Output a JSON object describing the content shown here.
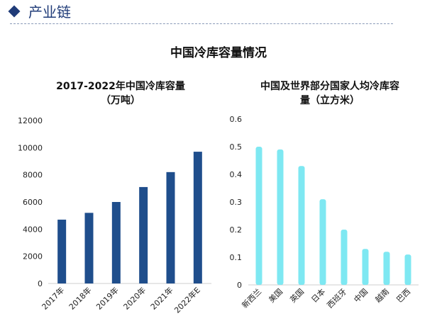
{
  "header": {
    "section_title": "产业链",
    "accent_color": "#1f3b78",
    "icon": "diamond-icon"
  },
  "main_title": "中国冷库容量情况",
  "chart_data": [
    {
      "type": "bar",
      "title_line1": "2017-2022年中国冷库容量",
      "title_line2": "（万吨）",
      "categories": [
        "2017年",
        "2018年",
        "2019年",
        "2020年",
        "2021年",
        "2022年E"
      ],
      "values": [
        4700,
        5200,
        6000,
        7100,
        8200,
        9700
      ],
      "ylim": [
        0,
        12000
      ],
      "yticks": [
        "0",
        "2000",
        "4000",
        "6000",
        "8000",
        "10000",
        "12000"
      ],
      "grid": false,
      "color": "#1f4e8c"
    },
    {
      "type": "bar",
      "title_line1": "中国及世界部分国家人均冷库容",
      "title_line2": "量（立方米）",
      "categories": [
        "新西兰",
        "美国",
        "英国",
        "日本",
        "西班牙",
        "中国",
        "越南",
        "巴西"
      ],
      "values": [
        0.5,
        0.49,
        0.43,
        0.31,
        0.2,
        0.13,
        0.12,
        0.11
      ],
      "ylim": [
        0,
        0.6
      ],
      "yticks": [
        "0",
        "0.1",
        "0.2",
        "0.3",
        "0.4",
        "0.5",
        "0.6"
      ],
      "grid": false,
      "color": "#7ee8f2"
    }
  ]
}
